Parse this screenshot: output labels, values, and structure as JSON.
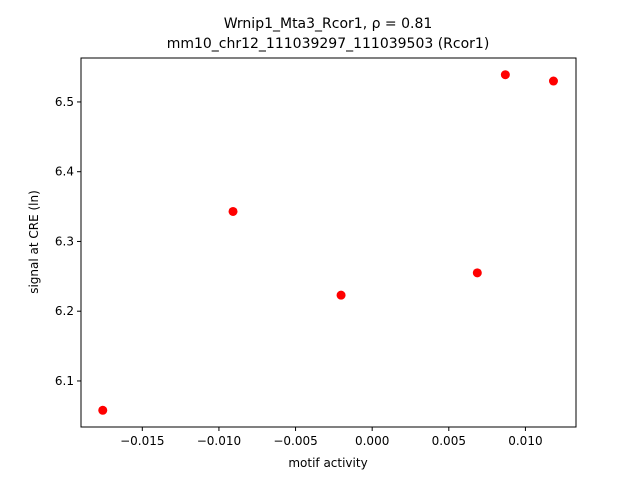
{
  "chart_data": {
    "type": "scatter",
    "title": "Wrnip1_Mta3_Rcor1, ρ = 0.81",
    "subtitle": "mm10_chr12_111039297_111039503 (Rcor1)",
    "x_label": "motif activity",
    "y_label": "signal at CRE (ln)",
    "color": "#ff0000",
    "x": [
      -0.01758,
      -0.00908,
      -0.00203,
      0.00686,
      0.00869,
      0.01183
    ],
    "values": [
      6.058,
      6.343,
      6.223,
      6.255,
      6.539,
      6.53
    ],
    "xlim": [
      -0.019,
      0.0133
    ],
    "ylim": [
      6.034,
      6.563
    ],
    "xticks": [
      {
        "value": -0.015,
        "label": "−0.015"
      },
      {
        "value": -0.01,
        "label": "−0.010"
      },
      {
        "value": -0.005,
        "label": "−0.005"
      },
      {
        "value": 0,
        "label": "0.000"
      },
      {
        "value": 0.005,
        "label": "0.005"
      },
      {
        "value": 0.01,
        "label": "0.010"
      }
    ],
    "yticks": [
      6.1,
      6.2,
      6.3,
      6.4,
      6.5
    ]
  }
}
